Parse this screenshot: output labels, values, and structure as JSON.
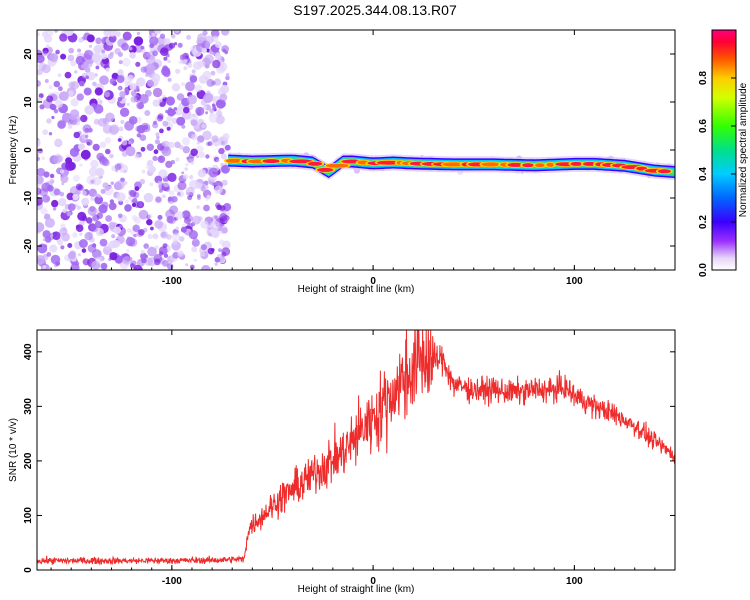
{
  "title": "S197.2025.344.08.13.R07",
  "colors": {
    "snr_line": "#ee2c2c",
    "noise": "#8a2be2",
    "frame": "#000000"
  },
  "chart_data": [
    {
      "type": "heatmap",
      "name": "spectrogram",
      "xlabel": "Height of straight line (km)",
      "ylabel": "Frequency (Hz)",
      "xlim": [
        -167,
        150
      ],
      "ylim": [
        -25,
        25
      ],
      "x_ticks": [
        -100,
        0,
        100
      ],
      "y_ticks": [
        -20,
        -10,
        0,
        10,
        20
      ],
      "noise_region_x": [
        -167,
        -72
      ],
      "ridge_x": [
        -72,
        -60,
        -40,
        -30,
        -22,
        -15,
        -10,
        0,
        10,
        20,
        40,
        60,
        80,
        100,
        110,
        125,
        140,
        150
      ],
      "ridge_freq": [
        -2.2,
        -2.4,
        -2.2,
        -2.6,
        -4.6,
        -2.4,
        -2.4,
        -2.8,
        -2.6,
        -2.8,
        -3.0,
        -3.0,
        -3.2,
        -2.9,
        -2.9,
        -3.3,
        -4.3,
        -4.6
      ],
      "colorbar": {
        "label": "Normalized spectral amplitude",
        "range": [
          0,
          1
        ],
        "ticks": [
          "0.0",
          "0.2",
          "0.4",
          "0.6",
          "0.8"
        ]
      }
    },
    {
      "type": "line",
      "name": "snr",
      "xlabel": "Height of straight line (km)",
      "ylabel": "SNR (10 * v/v)",
      "xlim": [
        -167,
        150
      ],
      "ylim": [
        0,
        440
      ],
      "x_ticks": [
        -100,
        0,
        100
      ],
      "y_ticks": [
        0,
        100,
        200,
        300,
        400
      ],
      "series": [
        {
          "name": "SNR",
          "x": [
            -167,
            -140,
            -110,
            -80,
            -64,
            -62,
            -55,
            -45,
            -35,
            -25,
            -15,
            -5,
            5,
            15,
            25,
            30,
            35,
            40,
            50,
            60,
            70,
            80,
            90,
            95,
            100,
            110,
            120,
            130,
            140,
            150
          ],
          "values": [
            17,
            17,
            17,
            18,
            20,
            75,
            100,
            135,
            160,
            190,
            215,
            260,
            300,
            350,
            390,
            385,
            385,
            340,
            330,
            330,
            325,
            330,
            330,
            335,
            320,
            300,
            285,
            265,
            235,
            210
          ]
        }
      ]
    }
  ],
  "axes_text": {
    "spec_xlabel": "Height of straight line (km)",
    "spec_ylabel": "Frequency (Hz)",
    "snr_xlabel": "Height of straight line (km)",
    "snr_ylabel": "SNR (10 * v/v)",
    "colorbar_label": "Normalized spectral amplitude"
  }
}
